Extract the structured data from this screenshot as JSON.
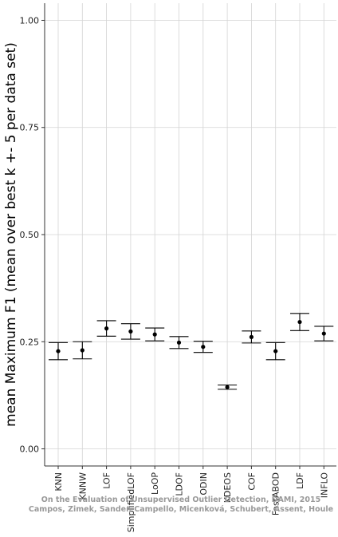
{
  "chart_data": {
    "type": "errorbar",
    "title": "",
    "xlabel": "",
    "ylabel": "mean Maximum F1 (mean over best k +- 5 per data set)",
    "ylim": [
      -0.04,
      1.04
    ],
    "yticks": [
      0.0,
      0.25,
      0.5,
      0.75,
      1.0
    ],
    "ytick_labels": [
      "0.00",
      "0.25",
      "0.50",
      "0.75",
      "1.00"
    ],
    "grid": true,
    "categories": [
      "KNN",
      "KNNW",
      "LOF",
      "SimplifiedLOF",
      "LoOP",
      "LDOF",
      "ODIN",
      "KDEOS",
      "COF",
      "FastABOD",
      "LDF",
      "INFLO"
    ],
    "series": [
      {
        "values": [
          0.228,
          0.23,
          0.281,
          0.274,
          0.267,
          0.248,
          0.238,
          0.144,
          0.261,
          0.228,
          0.296,
          0.269
        ],
        "lower": [
          0.208,
          0.21,
          0.263,
          0.256,
          0.252,
          0.234,
          0.225,
          0.139,
          0.247,
          0.208,
          0.276,
          0.252
        ],
        "upper": [
          0.248,
          0.25,
          0.299,
          0.292,
          0.282,
          0.262,
          0.251,
          0.149,
          0.275,
          0.248,
          0.316,
          0.286
        ]
      }
    ],
    "watermark": [
      "On the Evaluation of Unsupervised Outlier Detection, DAMI, 2015",
      "Campos, Zimek, Sander, Campello, Micenková, Schubert, Assent, Houle"
    ]
  }
}
